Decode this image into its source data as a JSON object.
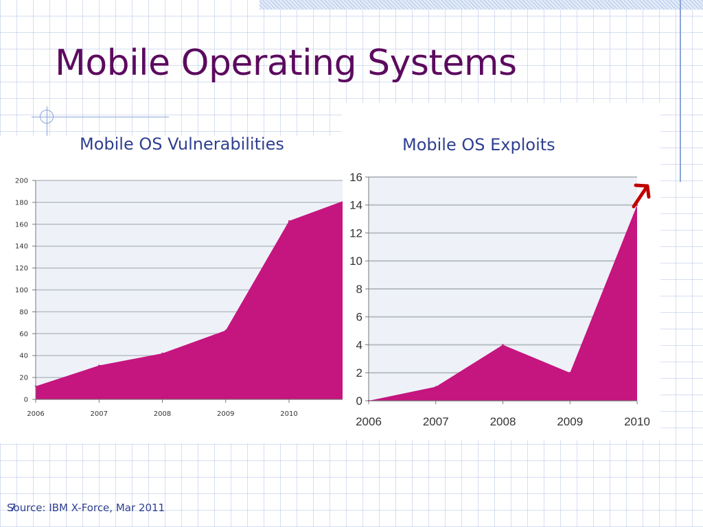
{
  "slide": {
    "title": "Mobile Operating Systems",
    "footer": "Source: IBM X-Force, Mar 2011",
    "slide_number": "7"
  },
  "colors": {
    "title": "#5c0a5e",
    "subtitle": "#2e3f8f",
    "area_fill": "#c5157f",
    "plot_bg": "#eef2f8",
    "gridline": "#b8bcc4",
    "arrow": "#c00000"
  },
  "chart_data": [
    {
      "type": "area",
      "title": "Mobile OS Vulnerabilities",
      "xlabel": "",
      "ylabel": "",
      "categories": [
        "2006",
        "2007",
        "2008",
        "2009",
        "2010"
      ],
      "series": [
        {
          "values": [
            12,
            31,
            42,
            63,
            163
          ]
        }
      ],
      "partial_last_point": {
        "x": "2011",
        "y": 181
      },
      "ylim": [
        0,
        200
      ],
      "yticks": [
        0,
        20,
        40,
        60,
        80,
        100,
        120,
        140,
        160,
        180,
        200
      ],
      "grid": true,
      "legend": "none"
    },
    {
      "type": "area",
      "title": "Mobile OS Exploits",
      "xlabel": "",
      "ylabel": "",
      "categories": [
        "2006",
        "2007",
        "2008",
        "2009",
        "2010"
      ],
      "series": [
        {
          "values": [
            0,
            1,
            4,
            2,
            14
          ]
        }
      ],
      "ylim": [
        0,
        16
      ],
      "yticks": [
        0,
        2,
        4,
        6,
        8,
        10,
        12,
        14,
        16
      ],
      "grid": true,
      "legend": "none",
      "annotation": "up-arrow-icon"
    }
  ]
}
